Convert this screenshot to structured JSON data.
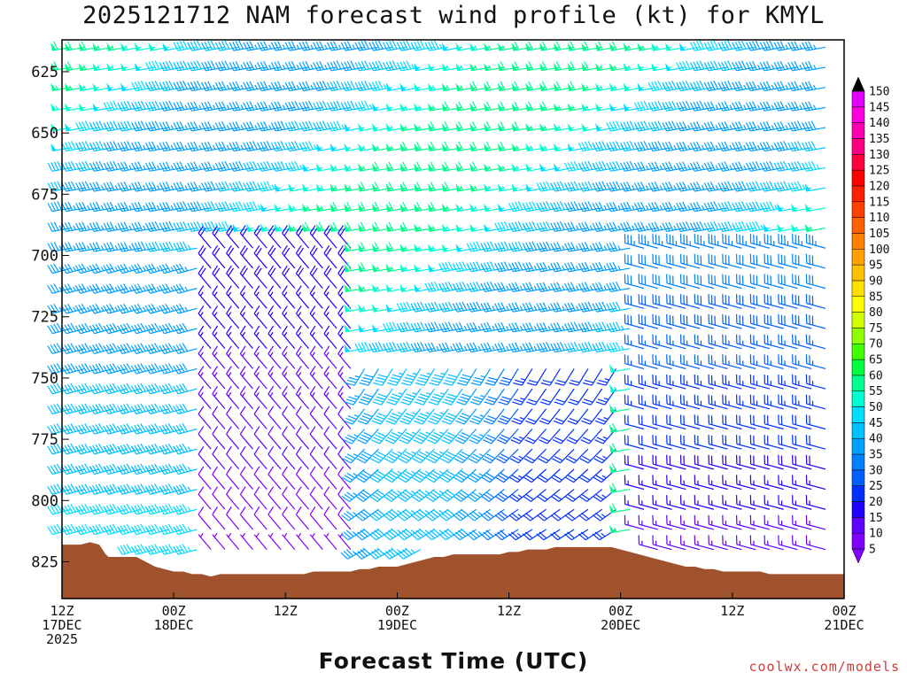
{
  "title": "2025121712 NAM forecast wind profile (kt) for KMYL",
  "credit": "coolwx.com/models",
  "chart_data": {
    "type": "wind_barb_time_height",
    "title": "2025121712 NAM forecast wind profile (kt) for KMYL",
    "xlabel": "Forecast Time (UTC)",
    "ylabel": "",
    "units": "kt",
    "x_range_hours": [
      0,
      84
    ],
    "y_range_hpa": [
      612,
      840
    ],
    "y_ticks": [
      625,
      650,
      675,
      700,
      725,
      750,
      775,
      800,
      825
    ],
    "x_ticks": [
      {
        "hour": 0,
        "lines": [
          "12Z",
          "17DEC",
          "2025"
        ]
      },
      {
        "hour": 12,
        "lines": [
          "00Z",
          "18DEC"
        ]
      },
      {
        "hour": 24,
        "lines": [
          "12Z"
        ]
      },
      {
        "hour": 36,
        "lines": [
          "00Z",
          "19DEC"
        ]
      },
      {
        "hour": 48,
        "lines": [
          "12Z"
        ]
      },
      {
        "hour": 60,
        "lines": [
          "00Z",
          "20DEC"
        ]
      },
      {
        "hour": 72,
        "lines": [
          "12Z"
        ]
      },
      {
        "hour": 84,
        "lines": [
          "00Z",
          "21DEC"
        ]
      }
    ],
    "colorbar": {
      "levels": [
        5,
        10,
        15,
        20,
        25,
        30,
        35,
        40,
        45,
        50,
        55,
        60,
        65,
        70,
        75,
        80,
        85,
        90,
        95,
        100,
        105,
        110,
        115,
        120,
        125,
        130,
        135,
        140,
        145,
        150
      ],
      "colors": [
        "#8000ff",
        "#6000ff",
        "#2000ff",
        "#0030ff",
        "#0060ff",
        "#0080ff",
        "#00a0ff",
        "#00c0ff",
        "#00ddff",
        "#00ffd0",
        "#00ff90",
        "#00ff40",
        "#40ff00",
        "#90ff00",
        "#d0ff00",
        "#ffff00",
        "#ffe000",
        "#ffc000",
        "#ffa000",
        "#ff8000",
        "#ff6000",
        "#ff4000",
        "#ff2000",
        "#ff0000",
        "#ff0040",
        "#ff0080",
        "#ff00b0",
        "#ff00e0",
        "#e000ff",
        "#c000ff"
      ]
    },
    "terrain": {
      "color": "#a0522d",
      "pressure_hpa": [
        [
          0,
          818
        ],
        [
          1,
          818
        ],
        [
          2,
          818
        ],
        [
          3,
          817
        ],
        [
          4,
          818
        ],
        [
          4.7,
          822
        ],
        [
          5,
          823
        ],
        [
          6,
          823
        ],
        [
          7,
          823
        ],
        [
          8,
          823
        ],
        [
          9,
          825
        ],
        [
          10,
          827
        ],
        [
          11,
          828
        ],
        [
          12,
          829
        ],
        [
          13,
          829
        ],
        [
          14,
          830
        ],
        [
          15,
          830
        ],
        [
          16,
          831
        ],
        [
          17,
          830
        ],
        [
          18,
          830
        ],
        [
          19,
          830
        ],
        [
          20,
          830
        ],
        [
          21,
          830
        ],
        [
          22,
          830
        ],
        [
          23,
          830
        ],
        [
          24,
          830
        ],
        [
          25,
          830
        ],
        [
          26,
          830
        ],
        [
          27,
          829
        ],
        [
          28,
          829
        ],
        [
          29,
          829
        ],
        [
          30,
          829
        ],
        [
          31,
          829
        ],
        [
          32,
          828
        ],
        [
          33,
          828
        ],
        [
          34,
          827
        ],
        [
          35,
          827
        ],
        [
          36,
          827
        ],
        [
          37,
          826
        ],
        [
          38,
          825
        ],
        [
          39,
          824
        ],
        [
          40,
          823
        ],
        [
          41,
          823
        ],
        [
          42,
          822
        ],
        [
          43,
          822
        ],
        [
          44,
          822
        ],
        [
          45,
          822
        ],
        [
          46,
          822
        ],
        [
          47,
          822
        ],
        [
          48,
          821
        ],
        [
          49,
          821
        ],
        [
          50,
          820
        ],
        [
          51,
          820
        ],
        [
          52,
          820
        ],
        [
          53,
          819
        ],
        [
          54,
          819
        ],
        [
          55,
          819
        ],
        [
          56,
          819
        ],
        [
          57,
          819
        ],
        [
          58,
          819
        ],
        [
          59,
          819
        ],
        [
          60,
          820
        ],
        [
          61,
          821
        ],
        [
          62,
          822
        ],
        [
          63,
          823
        ],
        [
          64,
          824
        ],
        [
          65,
          825
        ],
        [
          66,
          826
        ],
        [
          67,
          827
        ],
        [
          68,
          827
        ],
        [
          69,
          828
        ],
        [
          70,
          828
        ],
        [
          71,
          829
        ],
        [
          72,
          829
        ],
        [
          73,
          829
        ],
        [
          74,
          829
        ],
        [
          75,
          829
        ],
        [
          76,
          830
        ],
        [
          77,
          830
        ],
        [
          78,
          830
        ],
        [
          79,
          830
        ],
        [
          80,
          830
        ],
        [
          81,
          830
        ],
        [
          82,
          830
        ],
        [
          83,
          830
        ],
        [
          84,
          830
        ]
      ]
    },
    "wind_regimes": {
      "direction_convention": "degrees from which wind blows",
      "upper_levels_dir_deg": 260,
      "upper_levels_speed_kt": [
        35,
        60
      ],
      "mid_levels_hour_20_to_30": {
        "dir_deg": 320,
        "speed_kt": [
          5,
          20
        ]
      },
      "low_levels_hour_30_to_60": {
        "dir_deg": 225,
        "speed_kt": [
          20,
          45
        ]
      },
      "after_hour_62": {
        "dir_deg": 285,
        "speed_kt": [
          10,
          35
        ]
      }
    }
  }
}
